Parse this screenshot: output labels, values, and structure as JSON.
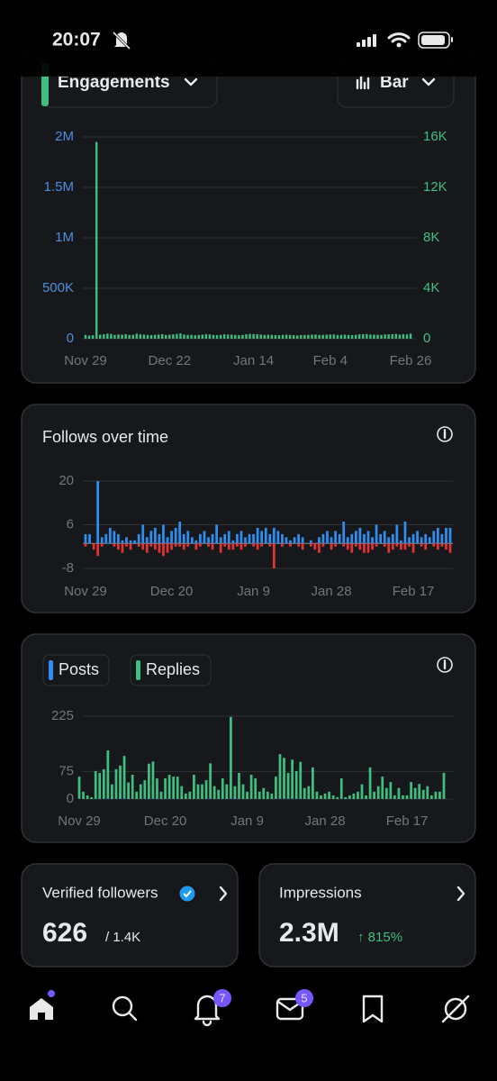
{
  "status_bar": {
    "time": "20:07"
  },
  "engagements_card": {
    "metric": "Engagements",
    "view": "Bar"
  },
  "chart_data": [
    {
      "type": "bar",
      "grid": true,
      "ytick_color": "#4a8fe0",
      "y2tick_color": "#3fbf7f",
      "xlim": [
        0,
        89
      ],
      "xticks": [
        {
          "value": 0,
          "label": "Nov 29"
        },
        {
          "value": 23,
          "label": "Dec 22"
        },
        {
          "value": 46,
          "label": "Jan 14"
        },
        {
          "value": 67,
          "label": "Feb 4"
        },
        {
          "value": 89,
          "label": "Feb 26"
        }
      ],
      "ylim": [
        0,
        2000000
      ],
      "yticks": [
        0,
        {
          "value": 500000,
          "label": "500K"
        },
        {
          "value": 1000000,
          "label": "1M"
        },
        {
          "value": 1500000,
          "label": "1.5M"
        },
        {
          "value": 2000000,
          "label": "2M"
        }
      ],
      "y2lim": [
        0,
        16000
      ],
      "y2ticks": [
        0,
        {
          "value": 4000,
          "label": "4K"
        },
        {
          "value": 8000,
          "label": "8K"
        },
        {
          "value": 12000,
          "label": "12K"
        },
        {
          "value": 16000,
          "label": "16K"
        }
      ],
      "series": [
        {
          "color": "#3fbf7f",
          "axis": "y2",
          "values": [
            300,
            250,
            280,
            15600,
            320,
            350,
            400,
            380,
            300,
            340,
            320,
            360,
            300,
            310,
            400,
            350,
            330,
            300,
            290,
            310,
            330,
            360,
            300,
            320,
            350,
            380,
            420,
            330,
            300,
            310,
            280,
            300,
            320,
            360,
            340,
            300,
            290,
            310,
            350,
            330,
            320,
            300,
            280,
            300,
            350,
            380,
            370,
            360,
            330,
            300,
            320,
            310,
            290,
            280,
            300,
            320,
            300,
            280,
            260,
            290,
            300,
            310,
            320,
            330,
            300,
            310,
            320,
            330,
            340,
            300,
            310,
            320,
            300,
            290,
            310,
            350,
            360,
            370,
            330,
            320,
            310,
            300,
            340,
            350,
            360,
            380,
            330,
            360,
            340,
            400
          ]
        }
      ]
    },
    {
      "type": "bar",
      "title": "Follows over time",
      "grid": true,
      "ytick_color": "#71767b",
      "xlim": [
        0,
        89
      ],
      "xticks": [
        {
          "value": 0,
          "label": "Nov 29"
        },
        {
          "value": 21,
          "label": "Dec 20"
        },
        {
          "value": 41,
          "label": "Jan 9"
        },
        {
          "value": 60,
          "label": "Jan 28"
        },
        {
          "value": 80,
          "label": "Feb 17"
        }
      ],
      "ylim": [
        -8,
        20
      ],
      "yticks": [
        -8,
        6,
        20
      ],
      "series": [
        {
          "color": "#2f8ff0",
          "values": [
            3,
            3,
            0,
            20,
            2,
            3,
            5,
            4,
            3,
            1,
            2,
            1,
            1,
            3,
            6,
            2,
            4,
            5,
            3,
            6,
            2,
            4,
            5,
            7,
            3,
            4,
            2,
            1,
            3,
            4,
            2,
            3,
            6,
            2,
            3,
            4,
            1,
            3,
            4,
            2,
            3,
            3,
            5,
            4,
            5,
            3,
            5,
            4,
            3,
            2,
            1,
            2,
            3,
            2,
            0,
            1,
            0,
            2,
            3,
            4,
            2,
            4,
            3,
            7,
            2,
            3,
            4,
            5,
            3,
            4,
            2,
            6,
            3,
            4,
            2,
            3,
            6,
            1,
            7,
            2,
            3,
            4,
            2,
            3,
            2,
            4,
            5,
            3,
            5,
            5
          ]
        },
        {
          "color": "#e5332f",
          "values": [
            -1,
            0,
            -2,
            -4,
            -1,
            0,
            0,
            -1,
            -2,
            -3,
            -1,
            -2,
            0,
            -1,
            -2,
            -3,
            -1,
            -2,
            -3,
            -4,
            -3,
            -2,
            -1,
            -1,
            -2,
            -1,
            0,
            -2,
            -1,
            0,
            -1,
            -2,
            0,
            -3,
            -1,
            -2,
            -2,
            -1,
            -2,
            -1,
            0,
            -1,
            -2,
            -1,
            0,
            -1,
            -8,
            0,
            -1,
            0,
            -1,
            0,
            -1,
            -2,
            0,
            -1,
            -2,
            -3,
            -1,
            0,
            -2,
            -1,
            0,
            -1,
            -2,
            -3,
            -1,
            -2,
            -3,
            -3,
            -2,
            -1,
            0,
            -1,
            -3,
            -2,
            -1,
            -2,
            -2,
            -1,
            -3,
            0,
            -1,
            -2,
            0,
            -1,
            -2,
            -1,
            -2,
            -3
          ]
        }
      ]
    },
    {
      "type": "bar",
      "stacked": true,
      "grid": true,
      "ytick_color": "#71767b",
      "xlim": [
        0,
        89
      ],
      "xticks": [
        {
          "value": 0,
          "label": "Nov 29"
        },
        {
          "value": 21,
          "label": "Dec 20"
        },
        {
          "value": 41,
          "label": "Jan 9"
        },
        {
          "value": 60,
          "label": "Jan 28"
        },
        {
          "value": 80,
          "label": "Feb 17"
        }
      ],
      "ylim": [
        0,
        225
      ],
      "yticks": [
        0,
        75,
        225
      ],
      "series": [
        {
          "name": "Posts",
          "color": "#2f8ff0",
          "values": [
            1,
            0,
            0,
            0,
            1,
            1,
            1,
            2,
            0,
            1,
            1,
            2,
            0,
            1,
            0,
            0,
            1,
            1,
            2,
            1,
            0,
            1,
            1,
            1,
            1,
            0,
            0,
            0,
            1,
            0,
            0,
            1,
            2,
            0,
            0,
            1,
            0,
            3,
            0,
            1,
            0,
            0,
            1,
            1,
            0,
            0,
            0,
            0,
            1,
            2,
            2,
            1,
            2,
            1,
            1,
            0,
            0,
            1,
            0,
            0,
            0,
            0,
            0,
            0,
            1,
            0,
            0,
            0,
            0,
            0,
            0,
            1,
            0,
            0,
            1,
            0,
            1,
            0,
            0,
            0,
            0,
            1,
            0,
            1,
            0,
            0,
            0,
            0,
            0,
            1
          ]
        },
        {
          "name": "Replies",
          "color": "#3fbf7f",
          "values": [
            60,
            20,
            10,
            5,
            75,
            70,
            80,
            130,
            40,
            80,
            90,
            115,
            45,
            65,
            20,
            40,
            50,
            95,
            100,
            55,
            20,
            55,
            65,
            60,
            60,
            35,
            15,
            20,
            65,
            40,
            40,
            50,
            95,
            35,
            25,
            55,
            40,
            220,
            35,
            70,
            40,
            20,
            65,
            55,
            20,
            30,
            20,
            15,
            60,
            120,
            110,
            70,
            105,
            75,
            100,
            30,
            35,
            85,
            20,
            10,
            15,
            20,
            10,
            5,
            55,
            5,
            10,
            15,
            20,
            40,
            10,
            85,
            20,
            35,
            60,
            30,
            45,
            10,
            30,
            10,
            10,
            45,
            30,
            40,
            25,
            35,
            10,
            20,
            20,
            70
          ]
        }
      ]
    }
  ],
  "stats": [
    {
      "label": "Verified followers",
      "value": "626",
      "sub": "/ 1.4K"
    },
    {
      "label": "Impressions",
      "value": "2.3M",
      "sub": "↑ 815%"
    }
  ],
  "nav": {
    "notifications": 7,
    "messages": 5
  }
}
